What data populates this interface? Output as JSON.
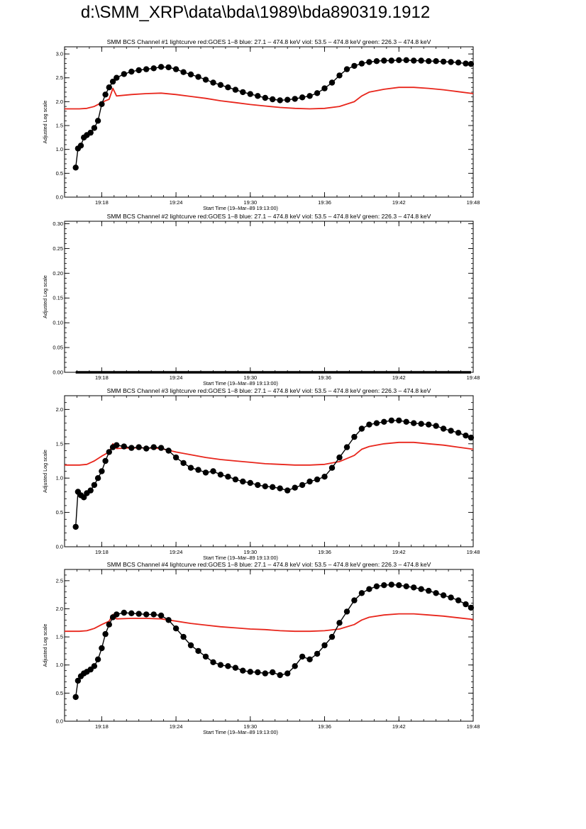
{
  "page": {
    "title": "d:\\SMM_XRP\\data\\bda\\1989\\bda890319.1912"
  },
  "colors": {
    "goes": "#e8261c",
    "bcs": "#000000",
    "axis": "#000000"
  },
  "chart_data": [
    {
      "type": "line",
      "title": "SMM BCS Channel #1 lightcurve  red:GOES 1–8  blue: 27.1 – 474.8 keV  viol: 53.5 – 474.8 keV  green: 226.3 – 474.8 keV",
      "xlabel": "Start Time (19–Mar–89 19:13:00)",
      "ylabel": "Adjusted Log scale",
      "xlim": [
        19.25,
        19.8
      ],
      "ylim": [
        0,
        3.15
      ],
      "yticks": [
        0.0,
        0.5,
        1.0,
        1.5,
        2.0,
        2.5,
        3.0
      ],
      "ytick_labels": [
        "0.0",
        "0.5",
        "1.0",
        "1.5",
        "2.0",
        "2.5",
        "3.0"
      ],
      "xticks": [
        19.3,
        19.4,
        19.5,
        19.6,
        19.7,
        19.8
      ],
      "xtick_labels": [
        "19:18",
        "19:24",
        "19:30",
        "19:36",
        "19:42",
        "19:48"
      ],
      "series": [
        {
          "color": "#e8261c",
          "marker": "none",
          "x": [
            19.25,
            19.26,
            19.27,
            19.28,
            19.29,
            19.3,
            19.305,
            19.31,
            19.315,
            19.32,
            19.34,
            19.36,
            19.38,
            19.4,
            19.42,
            19.44,
            19.46,
            19.48,
            19.5,
            19.52,
            19.54,
            19.56,
            19.58,
            19.6,
            19.62,
            19.64,
            19.65,
            19.66,
            19.68,
            19.7,
            19.72,
            19.74,
            19.76,
            19.78,
            19.8
          ],
          "values": [
            1.85,
            1.85,
            1.85,
            1.86,
            1.9,
            1.98,
            2.02,
            2.05,
            2.28,
            2.12,
            2.15,
            2.17,
            2.18,
            2.15,
            2.11,
            2.07,
            2.02,
            1.98,
            1.94,
            1.91,
            1.88,
            1.86,
            1.85,
            1.86,
            1.9,
            2.0,
            2.12,
            2.2,
            2.26,
            2.3,
            2.3,
            2.28,
            2.25,
            2.21,
            2.17
          ]
        },
        {
          "color": "#000000",
          "marker": "dot",
          "x": [
            19.265,
            19.268,
            19.272,
            19.276,
            19.28,
            19.285,
            19.29,
            19.295,
            19.3,
            19.305,
            19.31,
            19.315,
            19.32,
            19.33,
            19.34,
            19.35,
            19.36,
            19.37,
            19.38,
            19.39,
            19.4,
            19.41,
            19.42,
            19.43,
            19.44,
            19.45,
            19.46,
            19.47,
            19.48,
            19.49,
            19.5,
            19.51,
            19.52,
            19.53,
            19.54,
            19.55,
            19.56,
            19.57,
            19.58,
            19.59,
            19.6,
            19.61,
            19.62,
            19.63,
            19.64,
            19.65,
            19.66,
            19.67,
            19.68,
            19.69,
            19.7,
            19.71,
            19.72,
            19.73,
            19.74,
            19.75,
            19.76,
            19.77,
            19.78,
            19.79,
            19.797
          ],
          "values": [
            0.62,
            1.02,
            1.08,
            1.25,
            1.3,
            1.35,
            1.45,
            1.6,
            1.95,
            2.15,
            2.3,
            2.42,
            2.5,
            2.58,
            2.63,
            2.66,
            2.68,
            2.7,
            2.73,
            2.72,
            2.68,
            2.62,
            2.57,
            2.52,
            2.46,
            2.4,
            2.35,
            2.3,
            2.25,
            2.2,
            2.16,
            2.12,
            2.08,
            2.05,
            2.03,
            2.04,
            2.06,
            2.09,
            2.12,
            2.18,
            2.28,
            2.4,
            2.55,
            2.68,
            2.75,
            2.8,
            2.83,
            2.85,
            2.86,
            2.86,
            2.87,
            2.87,
            2.86,
            2.86,
            2.85,
            2.85,
            2.84,
            2.83,
            2.82,
            2.8,
            2.79
          ]
        }
      ]
    },
    {
      "type": "line",
      "title": "SMM BCS Channel #2 lightcurve  red:GOES 1–8  blue: 27.1 – 474.8 keV  viol: 53.5 – 474.8 keV  green: 226.3 – 474.8 keV",
      "xlabel": "Start Time (19–Mar–89 19:13:00)",
      "ylabel": "Adjusted Log scale",
      "xlim": [
        19.25,
        19.8
      ],
      "ylim": [
        0,
        0.305
      ],
      "yticks": [
        0.0,
        0.05,
        0.1,
        0.15,
        0.2,
        0.25,
        0.3
      ],
      "ytick_labels": [
        "0.00",
        "0.05",
        "0.10",
        "0.15",
        "0.20",
        "0.25",
        "0.30"
      ],
      "xticks": [
        19.3,
        19.4,
        19.5,
        19.6,
        19.7,
        19.8
      ],
      "xtick_labels": [
        "19:18",
        "19:24",
        "19:30",
        "19:36",
        "19:42",
        "19:48"
      ],
      "series": [
        {
          "color": "#000000",
          "marker": "dash",
          "x": [
            19.265,
            19.28,
            19.3,
            19.35,
            19.4,
            19.45,
            19.5,
            19.55,
            19.6,
            19.65,
            19.7,
            19.75,
            19.797
          ],
          "values": [
            0,
            0,
            0,
            0,
            0,
            0,
            0,
            0,
            0,
            0,
            0,
            0,
            0
          ]
        }
      ]
    },
    {
      "type": "line",
      "title": "SMM BCS Channel #3 lightcurve  red:GOES 1–8  blue: 27.1 – 474.8 keV  viol: 53.5 – 474.8 keV  green: 226.3 – 474.8 keV",
      "xlabel": "Start Time (19–Mar–89 19:13:00)",
      "ylabel": "Adjusted Log scale",
      "xlim": [
        19.25,
        19.8
      ],
      "ylim": [
        0,
        2.2
      ],
      "yticks": [
        0.0,
        0.5,
        1.0,
        1.5,
        2.0
      ],
      "ytick_labels": [
        "0.0",
        "0.5",
        "1.0",
        "1.5",
        "2.0"
      ],
      "xticks": [
        19.3,
        19.4,
        19.5,
        19.6,
        19.7,
        19.8
      ],
      "xtick_labels": [
        "19:18",
        "19:24",
        "19:30",
        "19:36",
        "19:42",
        "19:48"
      ],
      "series": [
        {
          "color": "#e8261c",
          "marker": "none",
          "x": [
            19.25,
            19.26,
            19.27,
            19.28,
            19.29,
            19.3,
            19.31,
            19.315,
            19.32,
            19.34,
            19.36,
            19.38,
            19.4,
            19.42,
            19.44,
            19.46,
            19.48,
            19.5,
            19.52,
            19.54,
            19.56,
            19.58,
            19.6,
            19.62,
            19.64,
            19.65,
            19.66,
            19.68,
            19.7,
            19.72,
            19.74,
            19.76,
            19.78,
            19.8
          ],
          "values": [
            1.19,
            1.19,
            1.19,
            1.2,
            1.25,
            1.32,
            1.38,
            1.5,
            1.43,
            1.44,
            1.44,
            1.43,
            1.38,
            1.34,
            1.3,
            1.27,
            1.25,
            1.23,
            1.21,
            1.2,
            1.19,
            1.19,
            1.2,
            1.24,
            1.33,
            1.42,
            1.46,
            1.5,
            1.52,
            1.52,
            1.5,
            1.48,
            1.45,
            1.42
          ]
        },
        {
          "color": "#000000",
          "marker": "dot",
          "x": [
            19.265,
            19.268,
            19.272,
            19.276,
            19.28,
            19.285,
            19.29,
            19.295,
            19.3,
            19.305,
            19.31,
            19.315,
            19.32,
            19.33,
            19.34,
            19.35,
            19.36,
            19.37,
            19.38,
            19.39,
            19.4,
            19.41,
            19.42,
            19.43,
            19.44,
            19.45,
            19.46,
            19.47,
            19.48,
            19.49,
            19.5,
            19.51,
            19.52,
            19.53,
            19.54,
            19.55,
            19.56,
            19.57,
            19.58,
            19.59,
            19.6,
            19.61,
            19.62,
            19.63,
            19.64,
            19.65,
            19.66,
            19.67,
            19.68,
            19.69,
            19.7,
            19.71,
            19.72,
            19.73,
            19.74,
            19.75,
            19.76,
            19.77,
            19.78,
            19.79,
            19.797
          ],
          "values": [
            0.29,
            0.8,
            0.75,
            0.72,
            0.78,
            0.82,
            0.9,
            1.0,
            1.1,
            1.25,
            1.38,
            1.45,
            1.48,
            1.46,
            1.44,
            1.45,
            1.43,
            1.45,
            1.44,
            1.4,
            1.3,
            1.22,
            1.15,
            1.12,
            1.08,
            1.1,
            1.05,
            1.02,
            0.98,
            0.95,
            0.93,
            0.9,
            0.88,
            0.87,
            0.85,
            0.82,
            0.86,
            0.9,
            0.95,
            0.98,
            1.02,
            1.15,
            1.3,
            1.45,
            1.6,
            1.72,
            1.78,
            1.8,
            1.82,
            1.84,
            1.84,
            1.82,
            1.8,
            1.79,
            1.78,
            1.76,
            1.72,
            1.69,
            1.66,
            1.62,
            1.59
          ]
        }
      ]
    },
    {
      "type": "line",
      "title": "SMM BCS Channel #4 lightcurve  red:GOES 1–8  blue: 27.1 – 474.8 keV  viol: 53.5 – 474.8 keV  green: 226.3 – 474.8 keV",
      "xlabel": "Start Time (19–Mar–89 19:13:00)",
      "ylabel": "Adjusted Log scale",
      "xlim": [
        19.25,
        19.8
      ],
      "ylim": [
        0,
        2.7
      ],
      "yticks": [
        0.0,
        0.5,
        1.0,
        1.5,
        2.0,
        2.5
      ],
      "ytick_labels": [
        "0.0",
        "0.5",
        "1.0",
        "1.5",
        "2.0",
        "2.5"
      ],
      "xticks": [
        19.3,
        19.4,
        19.5,
        19.6,
        19.7,
        19.8
      ],
      "xtick_labels": [
        "19:18",
        "19:24",
        "19:30",
        "19:36",
        "19:42",
        "19:48"
      ],
      "series": [
        {
          "color": "#e8261c",
          "marker": "none",
          "x": [
            19.25,
            19.26,
            19.27,
            19.28,
            19.29,
            19.3,
            19.31,
            19.315,
            19.32,
            19.34,
            19.36,
            19.38,
            19.4,
            19.42,
            19.44,
            19.46,
            19.48,
            19.5,
            19.52,
            19.54,
            19.56,
            19.58,
            19.6,
            19.62,
            19.64,
            19.65,
            19.66,
            19.68,
            19.7,
            19.72,
            19.74,
            19.76,
            19.78,
            19.8
          ],
          "values": [
            1.6,
            1.6,
            1.6,
            1.61,
            1.65,
            1.72,
            1.78,
            1.9,
            1.82,
            1.83,
            1.83,
            1.82,
            1.78,
            1.74,
            1.71,
            1.68,
            1.66,
            1.64,
            1.63,
            1.61,
            1.6,
            1.6,
            1.61,
            1.64,
            1.72,
            1.8,
            1.85,
            1.89,
            1.91,
            1.91,
            1.89,
            1.87,
            1.84,
            1.81
          ]
        },
        {
          "color": "#000000",
          "marker": "dot",
          "x": [
            19.265,
            19.268,
            19.272,
            19.276,
            19.28,
            19.285,
            19.29,
            19.295,
            19.3,
            19.305,
            19.31,
            19.315,
            19.32,
            19.33,
            19.34,
            19.35,
            19.36,
            19.37,
            19.38,
            19.39,
            19.4,
            19.41,
            19.42,
            19.43,
            19.44,
            19.45,
            19.46,
            19.47,
            19.48,
            19.49,
            19.5,
            19.51,
            19.52,
            19.53,
            19.54,
            19.55,
            19.56,
            19.57,
            19.58,
            19.59,
            19.6,
            19.61,
            19.62,
            19.63,
            19.64,
            19.65,
            19.66,
            19.67,
            19.68,
            19.69,
            19.7,
            19.71,
            19.72,
            19.73,
            19.74,
            19.75,
            19.76,
            19.77,
            19.78,
            19.79,
            19.797
          ],
          "values": [
            0.43,
            0.72,
            0.8,
            0.85,
            0.88,
            0.92,
            0.98,
            1.1,
            1.3,
            1.55,
            1.72,
            1.85,
            1.9,
            1.93,
            1.92,
            1.91,
            1.9,
            1.9,
            1.88,
            1.8,
            1.65,
            1.5,
            1.35,
            1.25,
            1.15,
            1.05,
            1.0,
            0.98,
            0.95,
            0.9,
            0.88,
            0.87,
            0.85,
            0.87,
            0.82,
            0.85,
            0.98,
            1.15,
            1.1,
            1.2,
            1.35,
            1.5,
            1.75,
            1.95,
            2.15,
            2.28,
            2.35,
            2.4,
            2.42,
            2.43,
            2.42,
            2.4,
            2.38,
            2.35,
            2.32,
            2.28,
            2.24,
            2.2,
            2.15,
            2.08,
            2.02
          ]
        }
      ]
    }
  ]
}
